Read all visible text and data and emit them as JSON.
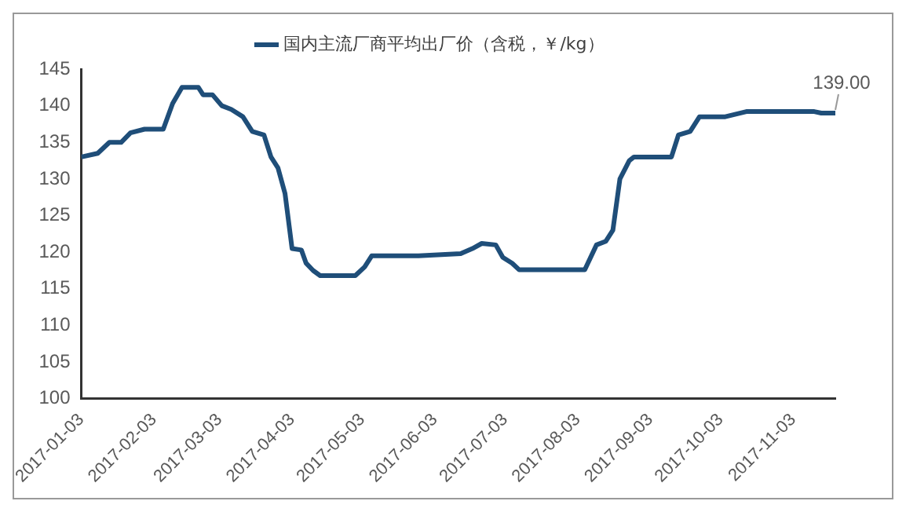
{
  "chart_data": {
    "type": "line",
    "x": [
      "2017-01-03",
      "2017-01-10",
      "2017-01-15",
      "2017-01-20",
      "2017-01-24",
      "2017-01-30",
      "2017-02-07",
      "2017-02-11",
      "2017-02-15",
      "2017-02-22",
      "2017-02-24",
      "2017-02-28",
      "2017-03-04",
      "2017-03-08",
      "2017-03-13",
      "2017-03-17",
      "2017-03-22",
      "2017-03-25",
      "2017-03-28",
      "2017-03-31",
      "2017-04-03",
      "2017-04-07",
      "2017-04-09",
      "2017-04-12",
      "2017-04-15",
      "2017-04-30",
      "2017-05-04",
      "2017-05-07",
      "2017-05-27",
      "2017-06-14",
      "2017-06-19",
      "2017-06-23",
      "2017-06-29",
      "2017-07-02",
      "2017-07-06",
      "2017-07-09",
      "2017-08-06",
      "2017-08-11",
      "2017-08-15",
      "2017-08-18",
      "2017-08-21",
      "2017-08-25",
      "2017-08-27",
      "2017-09-12",
      "2017-09-15",
      "2017-09-20",
      "2017-09-24",
      "2017-10-05",
      "2017-10-14",
      "2017-11-12",
      "2017-11-15",
      "2017-11-21"
    ],
    "series": [
      {
        "name": "国内主流厂商平均出厂价（含税，￥/kg）",
        "color": "#1f4e79",
        "values": [
          133,
          133.5,
          135,
          135,
          136.3,
          136.8,
          136.8,
          140.3,
          142.5,
          142.5,
          141.5,
          141.5,
          140,
          139.5,
          138.5,
          136.5,
          136,
          133,
          131.5,
          128,
          120.5,
          120.3,
          118.5,
          117.5,
          116.8,
          116.8,
          118,
          119.5,
          119.5,
          119.8,
          120.5,
          121.2,
          121,
          119.3,
          118.5,
          117.6,
          117.6,
          121,
          121.5,
          123,
          130,
          132.5,
          133,
          133,
          136,
          136.5,
          138.5,
          138.5,
          139.2,
          139.2,
          139,
          139
        ]
      }
    ],
    "xlim": [
      "2017-01-03",
      "2017-11-21"
    ],
    "xticks": [
      "2017-01-03",
      "2017-02-03",
      "2017-03-03",
      "2017-04-03",
      "2017-05-03",
      "2017-06-03",
      "2017-07-03",
      "2017-08-03",
      "2017-09-03",
      "2017-10-03",
      "2017-11-03"
    ],
    "ylim": [
      100,
      145
    ],
    "yticks": [
      100,
      105,
      110,
      115,
      120,
      125,
      130,
      135,
      140,
      145
    ],
    "annotations": [
      {
        "text": "139.00",
        "x": "2017-11-21",
        "y": 139
      }
    ],
    "grid": false,
    "legend": "top",
    "marker": "none",
    "line_style": "solid"
  }
}
